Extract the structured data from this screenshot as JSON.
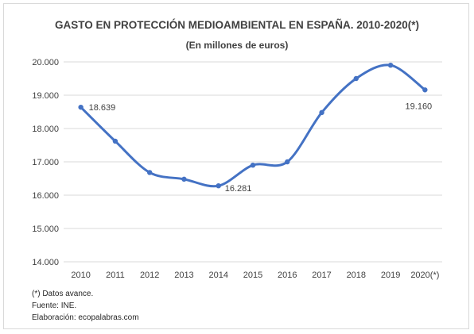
{
  "chart_data": {
    "type": "line",
    "title": "GASTO EN PROTECCIÓN MEDIOAMBIENTAL EN ESPAÑA. 2010-2020(*)",
    "subtitle": "(En millones de euros)",
    "categories": [
      "2010",
      "2011",
      "2012",
      "2013",
      "2014",
      "2015",
      "2016",
      "2017",
      "2018",
      "2019",
      "2020(*)"
    ],
    "series": [
      {
        "values": [
          18639,
          17620,
          16680,
          16480,
          16281,
          16900,
          17000,
          18480,
          19500,
          19900,
          19160
        ]
      }
    ],
    "data_labels": [
      {
        "index": 0,
        "text": "18.639"
      },
      {
        "index": 4,
        "text": "16.281"
      },
      {
        "index": 10,
        "text": "19.160"
      }
    ],
    "ylim": [
      14000,
      20000
    ],
    "yticks": [
      "14.000",
      "15.000",
      "16.000",
      "17.000",
      "18.000",
      "19.000",
      "20.000"
    ],
    "grid": true,
    "line_color": "#4472c4",
    "grid_color": "#d9d9d9"
  },
  "notes": [
    "(*) Datos avance.",
    "Fuente: INE.",
    "Elaboración: ecopalabras.com"
  ]
}
